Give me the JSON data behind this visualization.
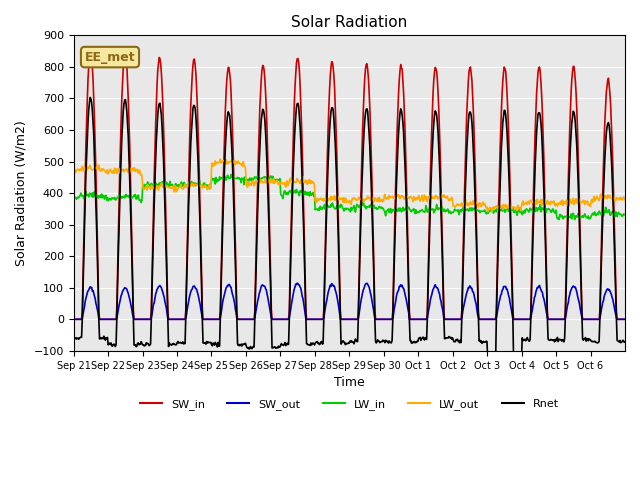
{
  "title": "Solar Radiation",
  "xlabel": "Time",
  "ylabel": "Solar Radiation (W/m2)",
  "ylim": [
    -100,
    900
  ],
  "yticks": [
    -100,
    0,
    100,
    200,
    300,
    400,
    500,
    600,
    700,
    800,
    900
  ],
  "bg_color": "#e8e8e8",
  "annotation_text": "EE_met",
  "annotation_bg": "#f5e6a0",
  "annotation_border": "#8b6914",
  "colors": {
    "SW_in": "#cc0000",
    "SW_out": "#0000cc",
    "LW_in": "#00cc00",
    "LW_out": "#ffaa00",
    "Rnet": "#000000"
  },
  "x_tick_labels": [
    "Sep 21",
    "Sep 22",
    "Sep 23",
    "Sep 24",
    "Sep 25",
    "Sep 26",
    "Sep 27",
    "Sep 28",
    "Sep 29",
    "Sep 30",
    "Oct 1",
    "Oct 2",
    "Oct 3",
    "Oct 4",
    "Oct 5",
    "Oct 6"
  ],
  "n_days": 16,
  "n_points_per_day": 48,
  "SW_in_peaks": [
    850,
    845,
    830,
    825,
    800,
    805,
    830,
    815,
    810,
    805,
    800,
    800,
    800,
    800,
    800,
    760
  ],
  "SW_out_peaks": [
    100,
    98,
    105,
    105,
    110,
    108,
    115,
    112,
    112,
    108,
    105,
    103,
    103,
    103,
    103,
    95
  ],
  "LW_in_base": [
    385,
    380,
    420,
    420,
    440,
    440,
    395,
    350,
    350,
    340,
    340,
    340,
    340,
    340,
    320,
    330
  ],
  "LW_out_base": [
    470,
    465,
    415,
    415,
    490,
    430,
    430,
    375,
    375,
    380,
    380,
    360,
    350,
    365,
    365,
    380
  ],
  "Rnet_min": [
    -60,
    -80,
    -80,
    -75,
    -80,
    -90,
    -80,
    -75,
    -70,
    -70,
    -60,
    -70,
    -130,
    -65,
    -65,
    -70
  ]
}
